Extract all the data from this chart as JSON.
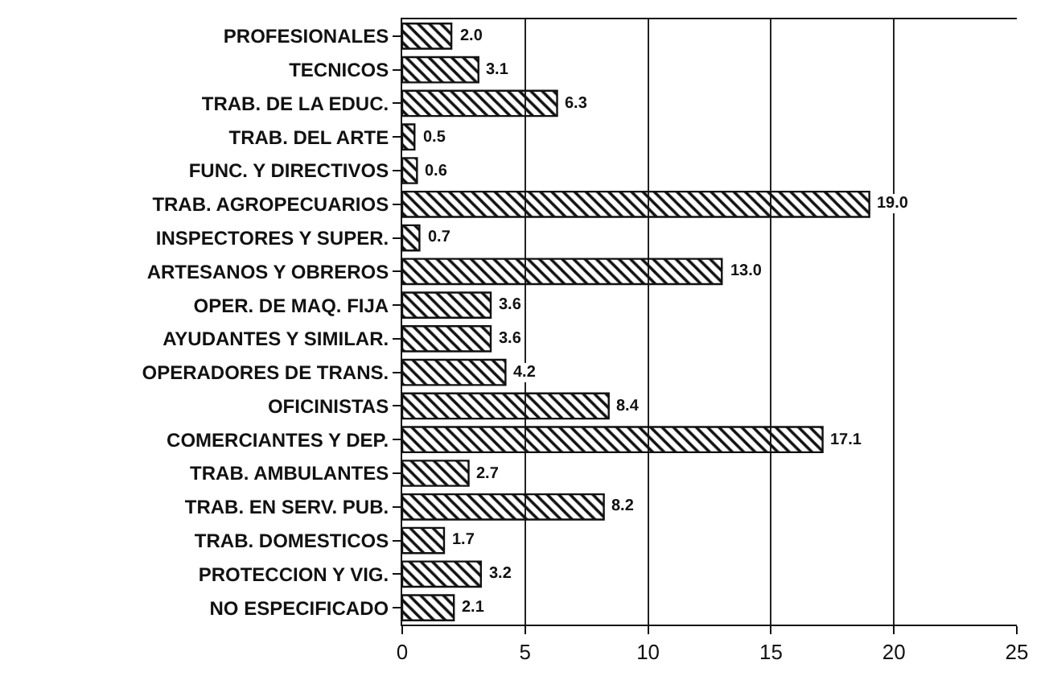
{
  "chart_data": {
    "type": "bar",
    "orientation": "horizontal",
    "categories": [
      "PROFESIONALES",
      "TECNICOS",
      "TRAB. DE LA EDUC.",
      "TRAB. DEL ARTE",
      "FUNC. Y DIRECTIVOS",
      "TRAB. AGROPECUARIOS",
      "INSPECTORES Y SUPER.",
      "ARTESANOS Y OBREROS",
      "OPER. DE MAQ. FIJA",
      "AYUDANTES Y SIMILAR.",
      "OPERADORES DE TRANS.",
      "OFICINISTAS",
      "COMERCIANTES Y DEP.",
      "TRAB. AMBULANTES",
      "TRAB. EN SERV. PUB.",
      "TRAB. DOMESTICOS",
      "PROTECCION Y VIG.",
      "NO ESPECIFICADO"
    ],
    "values": [
      2.0,
      3.1,
      6.3,
      0.5,
      0.6,
      19.0,
      0.7,
      13.0,
      3.6,
      3.6,
      4.2,
      8.4,
      17.1,
      2.7,
      8.2,
      1.7,
      3.2,
      2.1
    ],
    "value_labels": [
      "2.0",
      "3.1",
      "6.3",
      "0.5",
      "0.6",
      "19.0",
      "0.7",
      "13.0",
      "3.6",
      "3.6",
      "4.2",
      "8.4",
      "17.1",
      "2.7",
      "8.2",
      "1.7",
      "3.2",
      "2.1"
    ],
    "color": "#111111",
    "xlim": [
      0,
      25
    ],
    "xticks": [
      0,
      5,
      10,
      15,
      20,
      25
    ],
    "grid": "x"
  }
}
